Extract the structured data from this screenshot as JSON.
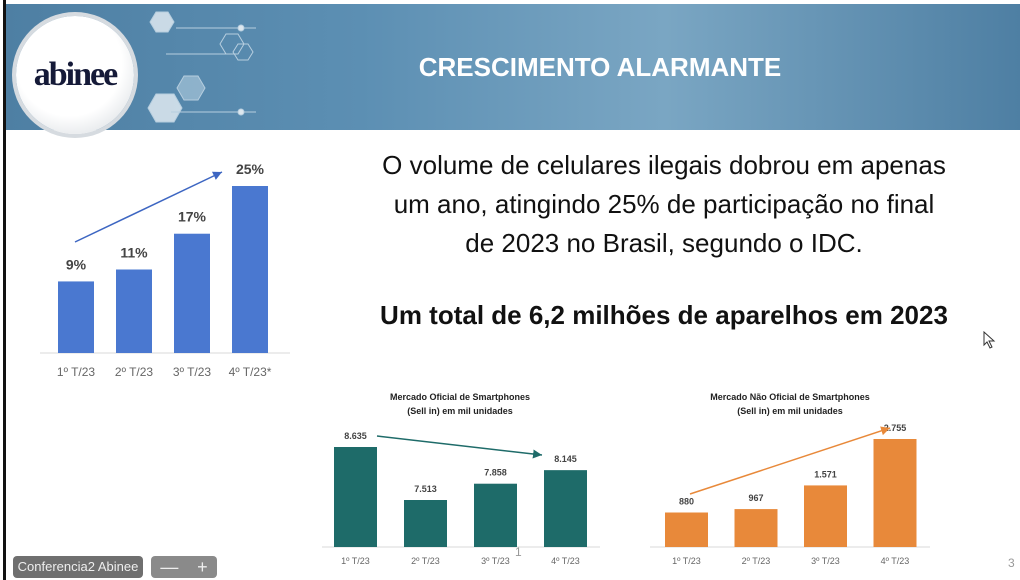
{
  "header": {
    "logo": "abinee",
    "title": "CRESCIMENTO ALARMANTE"
  },
  "body": {
    "lines": [
      "O volume de celulares ilegais dobrou em apenas",
      "um ano, atingindo 25% de participação no final",
      "de 2023 no Brasil, segundo o IDC."
    ],
    "highlight": "Um total de 6,2 milhões de aparelhos em 2023"
  },
  "chart_data": [
    {
      "type": "bar",
      "title": "",
      "categories": [
        "1º T/23",
        "2º T/23",
        "3º T/23",
        "4º T/23*"
      ],
      "values": [
        9,
        11,
        17,
        25
      ],
      "labels": [
        "9%",
        "11%",
        "17%",
        "25%"
      ],
      "ylim": [
        -3,
        26
      ],
      "color": "#4a78d0",
      "trend_arrow": "up"
    },
    {
      "type": "bar",
      "title": "Mercado Oficial de Smartphones",
      "subtitle": "(Sell in) em mil unidades",
      "categories": [
        "1º T/23",
        "2º T/23",
        "3º T/23",
        "4º T/23"
      ],
      "values": [
        8635,
        7513,
        7858,
        8145
      ],
      "labels": [
        "8.635",
        "7.513",
        "7.858",
        "8.145"
      ],
      "ylim": [
        6518,
        8700
      ],
      "color": "#1e6b69",
      "trend_arrow": "down"
    },
    {
      "type": "bar",
      "title": "Mercado Não Oficial de Smartphones",
      "subtitle": "(Sell in) em mil unidades",
      "categories": [
        "1º T/23",
        "2º T/23",
        "3º T/23",
        "4º T/23"
      ],
      "values": [
        880,
        967,
        1571,
        2755
      ],
      "labels": [
        "880",
        "967",
        "1.571",
        "2.755"
      ],
      "ylim": [
        0,
        2800
      ],
      "color": "#e8893a",
      "trend_arrow": "up"
    }
  ],
  "footer": {
    "meeting_name": "Conferencia2 Abinee",
    "zoom_out": "—",
    "zoom_in": "+",
    "page_number": "3",
    "marker": "1"
  }
}
